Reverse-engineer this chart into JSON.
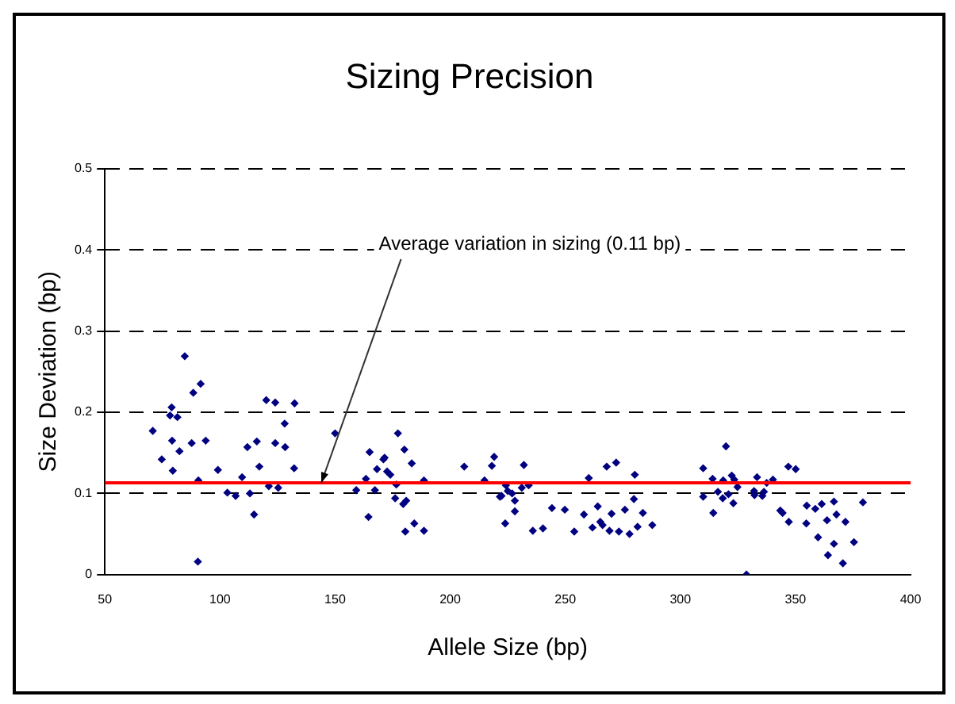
{
  "chart_data": {
    "type": "scatter",
    "title": "Sizing Precision",
    "xlabel": "Allele Size (bp)",
    "ylabel": "Size Deviation (bp)",
    "xlim": [
      50,
      400
    ],
    "xticks": [
      50,
      100,
      150,
      200,
      250,
      300,
      350,
      400
    ],
    "ylim": [
      0,
      0.5
    ],
    "yticks": [
      0,
      0.1,
      0.2,
      0.3,
      0.4,
      0.5
    ],
    "grid": "y",
    "marker": "diamond",
    "series": [
      {
        "color": "#000080",
        "x": [
          70.8,
          74.7,
          78.3,
          79.0,
          79.2,
          79.5,
          81.5,
          82.4,
          84.7,
          87.7,
          88.4,
          90.6,
          90.4,
          91.6,
          93.8,
          99.1,
          103.2,
          106.8,
          109.6,
          111.9,
          113.0,
          114.8,
          116.0,
          117.1,
          120.1,
          121.2,
          124.0,
          124.0,
          125.3,
          128.1,
          128.3,
          132.2,
          132.4,
          150.0,
          159.2,
          163.4,
          164.5,
          165.0,
          167.3,
          168.2,
          171.0,
          171.5,
          172.6,
          174.0,
          176.6,
          177.3,
          176.1,
          179.6,
          180.1,
          180.5,
          180.9,
          183.3,
          184.4,
          188.6,
          188.6,
          206.1,
          214.9,
          218.1,
          219.1,
          221.6,
          222.3,
          224.2,
          223.9,
          225.0,
          226.9,
          228.1,
          228.1,
          231.1,
          232.0,
          234.1,
          235.9,
          240.3,
          244.2,
          249.8,
          253.9,
          258.1,
          260.2,
          261.8,
          264.1,
          265.2,
          266.2,
          268.0,
          269.2,
          270.1,
          272.1,
          273.3,
          275.9,
          277.9,
          279.8,
          280.2,
          281.4,
          283.7,
          287.8,
          309.9,
          309.9,
          314.0,
          314.3,
          316.3,
          318.6,
          318.4,
          319.8,
          320.9,
          322.3,
          323.4,
          323.0,
          324.8,
          328.7,
          332.0,
          332.2,
          333.3,
          335.6,
          336.3,
          337.5,
          340.2,
          343.4,
          344.4,
          346.9,
          347.1,
          350.1,
          354.9,
          354.7,
          358.6,
          359.8,
          361.4,
          363.7,
          364.1,
          366.7,
          366.7,
          367.8,
          370.6,
          371.7,
          375.4,
          379.3
        ],
        "values": [
          0.177,
          0.142,
          0.196,
          0.206,
          0.165,
          0.128,
          0.194,
          0.152,
          0.269,
          0.162,
          0.224,
          0.116,
          0.016,
          0.235,
          0.165,
          0.129,
          0.101,
          0.097,
          0.12,
          0.157,
          0.1,
          0.074,
          0.164,
          0.133,
          0.215,
          0.109,
          0.212,
          0.162,
          0.107,
          0.186,
          0.157,
          0.131,
          0.211,
          0.174,
          0.104,
          0.118,
          0.071,
          0.151,
          0.104,
          0.13,
          0.142,
          0.144,
          0.127,
          0.123,
          0.111,
          0.174,
          0.094,
          0.087,
          0.154,
          0.053,
          0.091,
          0.137,
          0.063,
          0.116,
          0.054,
          0.133,
          0.116,
          0.134,
          0.145,
          0.096,
          0.097,
          0.11,
          0.063,
          0.103,
          0.1,
          0.091,
          0.078,
          0.107,
          0.135,
          0.11,
          0.054,
          0.057,
          0.082,
          0.08,
          0.053,
          0.074,
          0.119,
          0.058,
          0.084,
          0.065,
          0.061,
          0.133,
          0.054,
          0.075,
          0.138,
          0.053,
          0.08,
          0.05,
          0.093,
          0.123,
          0.059,
          0.076,
          0.061,
          0.131,
          0.096,
          0.118,
          0.076,
          0.102,
          0.116,
          0.094,
          0.158,
          0.099,
          0.122,
          0.117,
          0.088,
          0.108,
          0.0,
          0.103,
          0.098,
          0.12,
          0.097,
          0.102,
          0.113,
          0.117,
          0.079,
          0.076,
          0.133,
          0.065,
          0.13,
          0.085,
          0.063,
          0.081,
          0.046,
          0.087,
          0.067,
          0.024,
          0.038,
          0.09,
          0.074,
          0.014,
          0.065,
          0.04,
          0.089
        ]
      }
    ],
    "ref_lines": [
      {
        "axis": "y",
        "value": 0.113,
        "color": "#ff0000"
      }
    ],
    "annotations": [
      {
        "text": "Average variation in sizing (0.11 bp)",
        "x": 144,
        "y": 0.113
      }
    ]
  }
}
